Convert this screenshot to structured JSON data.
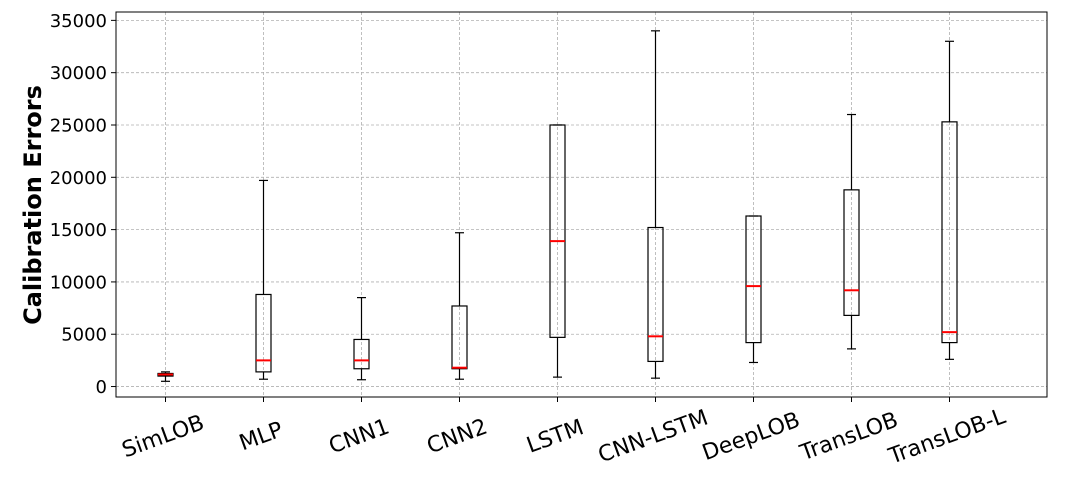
{
  "chart_data": {
    "type": "box",
    "title": "",
    "xlabel": "",
    "ylabel": "Calibration Errors",
    "ylim": [
      -1000,
      35800
    ],
    "yticks": [
      0,
      5000,
      10000,
      15000,
      20000,
      25000,
      30000,
      35000
    ],
    "grid": true,
    "median_color": "#ff0000",
    "categories": [
      "SimLOB",
      "MLP",
      "CNN1",
      "CNN2",
      "LSTM",
      "CNN-LSTM",
      "DeepLOB",
      "TransLOB",
      "TransLOB-L"
    ],
    "boxes": [
      {
        "whisker_low": 500,
        "q1": 1000,
        "median": 1150,
        "q3": 1250,
        "whisker_high": 1400
      },
      {
        "whisker_low": 700,
        "q1": 1400,
        "median": 2500,
        "q3": 8800,
        "whisker_high": 19700
      },
      {
        "whisker_low": 650,
        "q1": 1700,
        "median": 2500,
        "q3": 4500,
        "whisker_high": 8500
      },
      {
        "whisker_low": 700,
        "q1": 1700,
        "median": 1800,
        "q3": 7700,
        "whisker_high": 14700
      },
      {
        "whisker_low": 900,
        "q1": 4700,
        "median": 13900,
        "q3": 25000,
        "whisker_high": 25000
      },
      {
        "whisker_low": 800,
        "q1": 2400,
        "median": 4800,
        "q3": 15200,
        "whisker_high": 34000
      },
      {
        "whisker_low": 2300,
        "q1": 4200,
        "median": 9600,
        "q3": 16300,
        "whisker_high": 16300
      },
      {
        "whisker_low": 3600,
        "q1": 6800,
        "median": 9200,
        "q3": 18800,
        "whisker_high": 26000
      },
      {
        "whisker_low": 2600,
        "q1": 4200,
        "median": 5200,
        "q3": 25300,
        "whisker_high": 33000
      }
    ]
  }
}
